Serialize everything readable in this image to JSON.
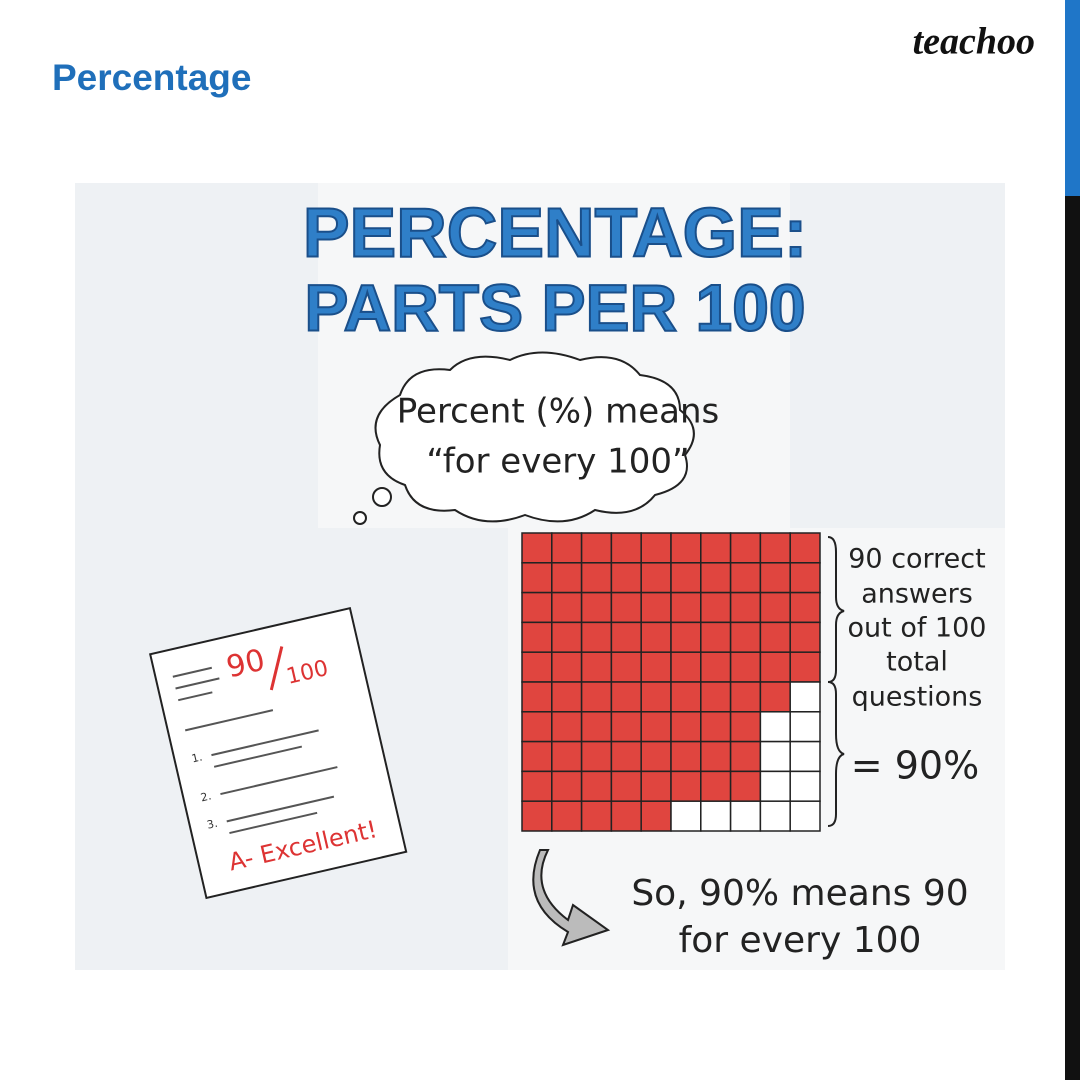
{
  "header": {
    "title": "Percentage",
    "logo": "teachoo"
  },
  "poster": {
    "title": [
      "PERCENTAGE:",
      "PARTS PER 100"
    ],
    "cloud": [
      "Percent (%) means",
      "“for every 100”"
    ],
    "grid_note": [
      "90 correct",
      "answers",
      "out of 100",
      "total",
      "questions"
    ],
    "result": "= 90%",
    "conclusion": [
      "So, 90% means 90",
      "for every 100"
    ],
    "paper": {
      "score_top": "90",
      "score_bottom": "100",
      "items": [
        "1.",
        "2.",
        "3."
      ],
      "grade": "A- Excellent!"
    }
  }
}
